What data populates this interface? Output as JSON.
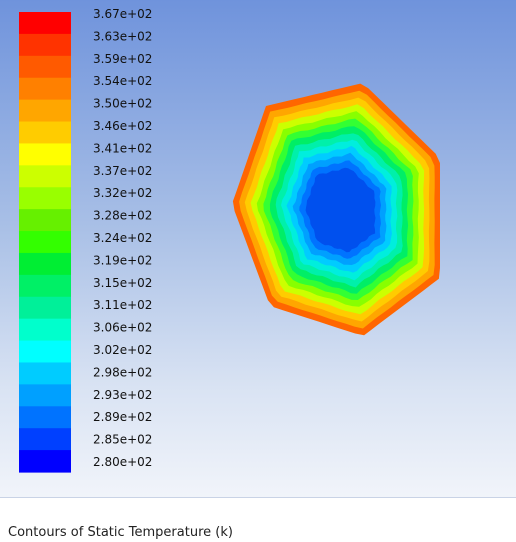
{
  "chart_data": {
    "type": "heatmap",
    "caption": "Contours of Static Temperature (k)",
    "colorbar": {
      "labels": [
        "3.67e+02",
        "3.63e+02",
        "3.59e+02",
        "3.54e+02",
        "3.50e+02",
        "3.46e+02",
        "3.41e+02",
        "3.37e+02",
        "3.32e+02",
        "3.28e+02",
        "3.24e+02",
        "3.19e+02",
        "3.15e+02",
        "3.11e+02",
        "3.06e+02",
        "3.02e+02",
        "2.98e+02",
        "2.93e+02",
        "2.89e+02",
        "2.85e+02",
        "2.80e+02"
      ],
      "colors": [
        "#ff0000",
        "#ff3300",
        "#ff5a00",
        "#ff8000",
        "#ffa600",
        "#ffcc00",
        "#ffff00",
        "#ccff00",
        "#99ff00",
        "#66f000",
        "#33ff00",
        "#00ee33",
        "#00f066",
        "#00f099",
        "#00ffcc",
        "#00ffff",
        "#00ccff",
        "#00a0ff",
        "#0073ff",
        "#0040ff",
        "#0000ff"
      ]
    },
    "contour_bands": [
      "#ff6600",
      "#ffa600",
      "#ffcc00",
      "#ccff00",
      "#88ff00",
      "#33ff33",
      "#00ee66",
      "#00f0aa",
      "#00eedd",
      "#00ccff",
      "#00a0ff",
      "#0073ff",
      "#0050ee"
    ]
  }
}
